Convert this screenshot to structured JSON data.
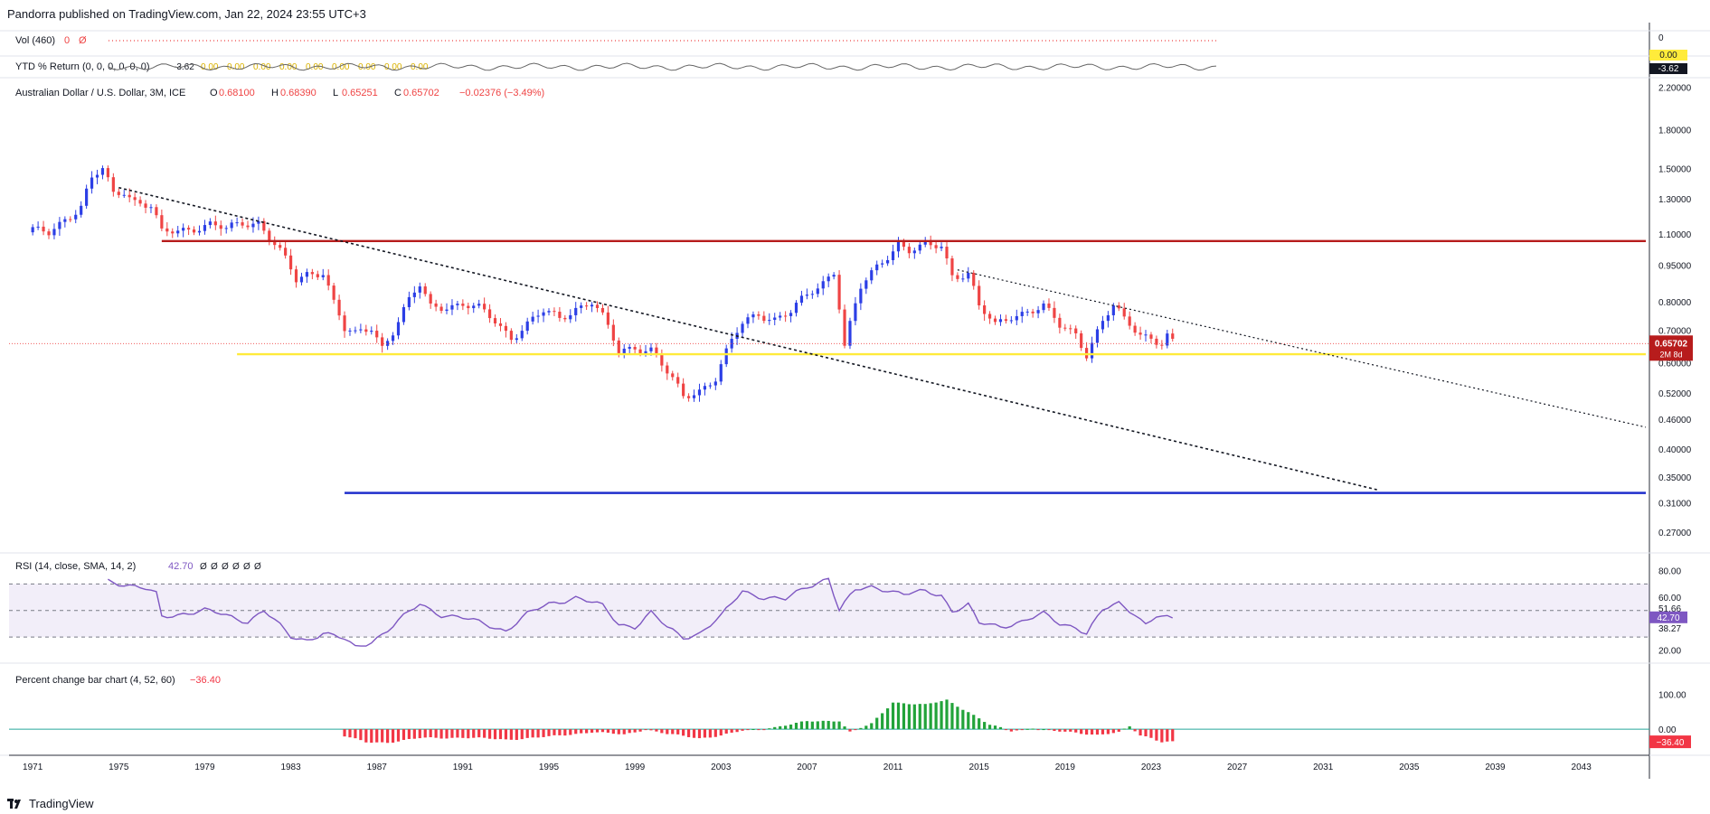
{
  "header": {
    "published_by": "Pandorra published on TradingView.com, Jan 22, 2024 23:55 UTC+3"
  },
  "footer": {
    "brand": "TradingView",
    "logo_icon": "tradingview-logo-icon"
  },
  "colors": {
    "up": "#2c3fe6",
    "down": "#ef4444",
    "red_line": "#b71c1c",
    "yellow_line": "#ffeb3b",
    "blue_line": "#1f2ecc",
    "rsi": "#7e57c2",
    "pct_up": "#22a33a",
    "pct_down": "#f23645"
  },
  "chart_data": [
    {
      "type": "line",
      "name": "volume-legend",
      "legend": {
        "title": "Vol (460)",
        "values": [
          "0",
          "Ø"
        ]
      },
      "axis_labels": [
        "0"
      ]
    },
    {
      "type": "line",
      "name": "ytd-return",
      "legend": {
        "title": "YTD % Return (0, 0, 0, 0, 0, 0)",
        "values": [
          "-3.62",
          "0.00",
          "0.00",
          "0.00",
          "0.00",
          "0.00",
          "0.00",
          "0.00",
          "0.00",
          "0.00"
        ]
      },
      "axis_labels": [
        {
          "text": "0.00",
          "style": "yellow"
        },
        {
          "text": "-3.62",
          "style": "dark"
        }
      ]
    },
    {
      "type": "candlestick",
      "name": "price",
      "title": "Australian Dollar / U.S. Dollar, 3M, ICE",
      "ohlc": {
        "O": "0.68100",
        "H": "0.68390",
        "L": "0.65251",
        "C": "0.65702",
        "change": "−0.02376 (−3.49%)"
      },
      "scale": "log",
      "ylim": [
        0.245,
        2.3
      ],
      "ticks": [
        "2.20000",
        "1.80000",
        "1.50000",
        "1.30000",
        "1.10000",
        "0.95000",
        "0.80000",
        "0.70000",
        "0.60000",
        "0.52000",
        "0.46000",
        "0.40000",
        "0.35000",
        "0.31000",
        "0.27000"
      ],
      "last_price_badge": {
        "price": "0.65702",
        "countdown": "2M 8d"
      },
      "x_range": [
        1969.9,
        2046.0
      ],
      "x_ticks": [
        "1971",
        "1975",
        "1979",
        "1983",
        "1987",
        "1991",
        "1995",
        "1999",
        "2003",
        "2007",
        "2011",
        "2015",
        "2019",
        "2023",
        "2027",
        "2031",
        "2035",
        "2039",
        "2043"
      ],
      "anchors": [
        [
          1971.0,
          1.11
        ],
        [
          1971.75,
          1.11
        ],
        [
          1972.5,
          1.19
        ],
        [
          1973.25,
          1.25
        ],
        [
          1973.75,
          1.42
        ],
        [
          1974.25,
          1.49
        ],
        [
          1974.75,
          1.33
        ],
        [
          1975.25,
          1.36
        ],
        [
          1975.75,
          1.29
        ],
        [
          1976.5,
          1.25
        ],
        [
          1977.0,
          1.1
        ],
        [
          1977.75,
          1.12
        ],
        [
          1978.5,
          1.14
        ],
        [
          1979.25,
          1.15
        ],
        [
          1980.0,
          1.12
        ],
        [
          1980.75,
          1.16
        ],
        [
          1981.5,
          1.17
        ],
        [
          1982.25,
          1.05
        ],
        [
          1982.75,
          0.97
        ],
        [
          1983.25,
          0.88
        ],
        [
          1983.75,
          0.91
        ],
        [
          1984.5,
          0.93
        ],
        [
          1985.0,
          0.8
        ],
        [
          1985.5,
          0.7
        ],
        [
          1986.0,
          0.68
        ],
        [
          1986.75,
          0.71
        ],
        [
          1987.25,
          0.65
        ],
        [
          1987.75,
          0.7
        ],
        [
          1988.5,
          0.8
        ],
        [
          1989.0,
          0.86
        ],
        [
          1989.5,
          0.78
        ],
        [
          1990.25,
          0.79
        ],
        [
          1991.0,
          0.79
        ],
        [
          1991.75,
          0.77
        ],
        [
          1992.5,
          0.73
        ],
        [
          1993.25,
          0.68
        ],
        [
          1994.0,
          0.72
        ],
        [
          1994.75,
          0.76
        ],
        [
          1995.5,
          0.74
        ],
        [
          1996.25,
          0.78
        ],
        [
          1997.0,
          0.8
        ],
        [
          1997.5,
          0.74
        ],
        [
          1998.25,
          0.63
        ],
        [
          1999.0,
          0.65
        ],
        [
          1999.75,
          0.64
        ],
        [
          2000.5,
          0.57
        ],
        [
          2001.25,
          0.51
        ],
        [
          2002.0,
          0.53
        ],
        [
          2002.75,
          0.56
        ],
        [
          2003.5,
          0.66
        ],
        [
          2004.0,
          0.72
        ],
        [
          2004.75,
          0.76
        ],
        [
          2005.5,
          0.74
        ],
        [
          2006.25,
          0.76
        ],
        [
          2007.0,
          0.82
        ],
        [
          2007.75,
          0.88
        ],
        [
          2008.25,
          0.93
        ],
        [
          2008.75,
          0.65
        ],
        [
          2009.5,
          0.85
        ],
        [
          2010.0,
          0.91
        ],
        [
          2010.75,
          1.0
        ],
        [
          2011.25,
          1.06
        ],
        [
          2011.75,
          1.02
        ],
        [
          2012.5,
          1.03
        ],
        [
          2013.25,
          1.04
        ],
        [
          2013.75,
          0.91
        ],
        [
          2014.5,
          0.92
        ],
        [
          2015.0,
          0.78
        ],
        [
          2015.75,
          0.71
        ],
        [
          2016.5,
          0.75
        ],
        [
          2017.25,
          0.77
        ],
        [
          2018.0,
          0.78
        ],
        [
          2018.75,
          0.71
        ],
        [
          2019.5,
          0.69
        ],
        [
          2020.0,
          0.63
        ],
        [
          2020.75,
          0.73
        ],
        [
          2021.25,
          0.78
        ],
        [
          2021.75,
          0.73
        ],
        [
          2022.5,
          0.69
        ],
        [
          2023.0,
          0.68
        ],
        [
          2023.5,
          0.66
        ],
        [
          2023.75,
          0.68
        ],
        [
          2024.0,
          0.657
        ]
      ],
      "lines": [
        {
          "name": "resistance-red",
          "from": [
            1977.0,
            1.065
          ],
          "to": [
            2046.0,
            1.065
          ]
        },
        {
          "name": "support-yellow",
          "from": [
            1980.5,
            0.625
          ],
          "to": [
            2046.0,
            0.625
          ]
        },
        {
          "name": "support-blue",
          "from": [
            1985.5,
            0.325
          ],
          "to": [
            2046.0,
            0.325
          ]
        },
        {
          "name": "trend-lower-dotted",
          "from": [
            1975.0,
            1.37
          ],
          "to": [
            2033.5,
            0.33
          ]
        },
        {
          "name": "trend-upper-dotted",
          "from": [
            2014.0,
            0.93
          ],
          "to": [
            2046.0,
            0.443
          ]
        }
      ],
      "price_marker": 0.657
    },
    {
      "type": "line",
      "name": "rsi",
      "legend": {
        "title": "RSI (14, close, SMA, 14, 2)",
        "value": "42.70",
        "extras": [
          "Ø",
          "Ø",
          "Ø",
          "Ø",
          "Ø",
          "Ø"
        ]
      },
      "ylim": [
        13,
        88
      ],
      "ticks": [
        "80.00",
        "60.00",
        "20.00"
      ],
      "bands": {
        "upper": 70,
        "mid": 50,
        "lower": 30
      },
      "labels": {
        "last": "42.70",
        "upper": "51.66",
        "lower": "38.27"
      },
      "anchors": [
        [
          1974.5,
          73
        ],
        [
          1975.25,
          70
        ],
        [
          1976.25,
          66
        ],
        [
          1976.75,
          62
        ],
        [
          1977.0,
          45
        ],
        [
          1978.0,
          48
        ],
        [
          1979.0,
          50
        ],
        [
          1980.0,
          46
        ],
        [
          1981.0,
          42
        ],
        [
          1981.75,
          50
        ],
        [
          1983.0,
          30
        ],
        [
          1983.75,
          28
        ],
        [
          1984.5,
          33
        ],
        [
          1985.5,
          28
        ],
        [
          1986.0,
          22
        ],
        [
          1986.75,
          27
        ],
        [
          1987.5,
          35
        ],
        [
          1988.25,
          45
        ],
        [
          1989.0,
          55
        ],
        [
          1990.0,
          47
        ],
        [
          1991.0,
          44
        ],
        [
          1992.0,
          40
        ],
        [
          1993.0,
          35
        ],
        [
          1994.0,
          47
        ],
        [
          1995.0,
          55
        ],
        [
          1996.25,
          60
        ],
        [
          1997.5,
          53
        ],
        [
          1998.25,
          40
        ],
        [
          1999.0,
          38
        ],
        [
          1999.75,
          48
        ],
        [
          2000.5,
          37
        ],
        [
          2001.25,
          30
        ],
        [
          2002.0,
          33
        ],
        [
          2003.0,
          45
        ],
        [
          2003.5,
          55
        ],
        [
          2004.0,
          65
        ],
        [
          2005.0,
          60
        ],
        [
          2006.0,
          58
        ],
        [
          2007.0,
          68
        ],
        [
          2008.0,
          75
        ],
        [
          2008.5,
          50
        ],
        [
          2009.25,
          65
        ],
        [
          2010.0,
          68
        ],
        [
          2010.75,
          66
        ],
        [
          2011.5,
          62
        ],
        [
          2012.5,
          64
        ],
        [
          2013.25,
          62
        ],
        [
          2013.75,
          50
        ],
        [
          2014.5,
          54
        ],
        [
          2015.0,
          40
        ],
        [
          2016.0,
          38
        ],
        [
          2017.0,
          42
        ],
        [
          2018.0,
          47
        ],
        [
          2018.75,
          40
        ],
        [
          2019.5,
          38
        ],
        [
          2020.0,
          33
        ],
        [
          2020.75,
          50
        ],
        [
          2021.5,
          55
        ],
        [
          2022.25,
          48
        ],
        [
          2022.75,
          40
        ],
        [
          2023.25,
          46
        ],
        [
          2024.0,
          42.7
        ]
      ]
    },
    {
      "type": "bar",
      "name": "percent-change",
      "legend": {
        "title": "Percent change bar chart (4, 52, 60)",
        "value": "−36.40"
      },
      "ylim": [
        -70,
        180
      ],
      "ticks": [
        "100.00",
        "0.00"
      ],
      "last_label": "−36.40",
      "anchors": [
        [
          1985.5,
          -20
        ],
        [
          1986.5,
          -38
        ],
        [
          1987.5,
          -38
        ],
        [
          1989.0,
          -26
        ],
        [
          1991.0,
          -24
        ],
        [
          1993.0,
          -30
        ],
        [
          1995.0,
          -22
        ],
        [
          1997.0,
          -8
        ],
        [
          1998.5,
          -16
        ],
        [
          1999.5,
          0
        ],
        [
          2000.5,
          -14
        ],
        [
          2002.0,
          -26
        ],
        [
          2003.0,
          -18
        ],
        [
          2004.0,
          -5
        ],
        [
          2005.5,
          6
        ],
        [
          2007.0,
          22
        ],
        [
          2008.5,
          25
        ],
        [
          2009.0,
          -8
        ],
        [
          2010.0,
          15
        ],
        [
          2011.0,
          78
        ],
        [
          2012.5,
          70
        ],
        [
          2013.5,
          84
        ],
        [
          2014.5,
          50
        ],
        [
          2015.5,
          12
        ],
        [
          2016.5,
          -5
        ],
        [
          2017.5,
          4
        ],
        [
          2018.5,
          -6
        ],
        [
          2019.5,
          -10
        ],
        [
          2020.5,
          -16
        ],
        [
          2021.5,
          -10
        ],
        [
          2022.0,
          8
        ],
        [
          2022.5,
          -18
        ],
        [
          2023.0,
          -24
        ],
        [
          2023.5,
          -36
        ],
        [
          2024.0,
          -36.4
        ]
      ]
    }
  ]
}
